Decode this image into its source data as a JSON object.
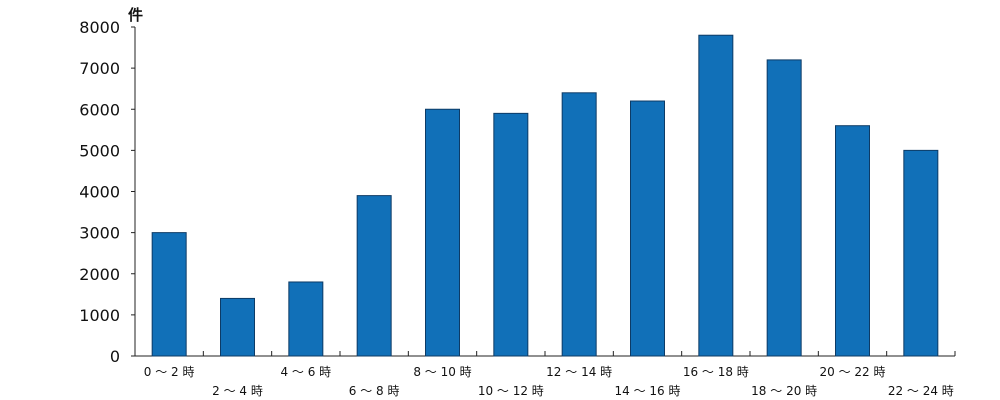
{
  "chart_data": {
    "type": "bar",
    "ylabel": "件",
    "xlabel": "",
    "ylim": [
      0,
      8000
    ],
    "yticks": [
      0,
      1000,
      2000,
      3000,
      4000,
      5000,
      6000,
      7000,
      8000
    ],
    "categories": [
      "0 ～ 2 時",
      "2 ～ 4 時",
      "4 ～ 6 時",
      "6 ～ 8 時",
      "8 ～ 10 時",
      "10 ～ 12 時",
      "12 ～ 14 時",
      "14 ～ 16 時",
      "16 ～ 18 時",
      "18 ～ 20 時",
      "20 ～ 22 時",
      "22 ～ 24 時"
    ],
    "values": [
      3000,
      1400,
      1800,
      3900,
      6000,
      5900,
      6400,
      6200,
      7800,
      7200,
      5600,
      5000
    ],
    "bar_color": "#1170b8",
    "grid": false,
    "legend": "none"
  }
}
